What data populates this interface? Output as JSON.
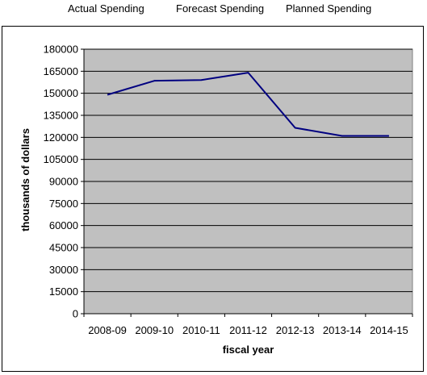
{
  "header": {
    "labels": [
      "Actual Spending",
      "Forecast Spending",
      "Planned Spending"
    ]
  },
  "chart_data": {
    "type": "line",
    "title": "",
    "xlabel": "fiscal year",
    "ylabel": "thousands of dollars",
    "categories": [
      "2008-09",
      "2009-10",
      "2010-11",
      "2011-12",
      "2012-13",
      "2013-14",
      "2014-15"
    ],
    "series": [
      {
        "values": [
          149000,
          158500,
          159000,
          164000,
          126500,
          121000,
          121000
        ]
      }
    ],
    "ylim": [
      0,
      180000
    ],
    "yticks": [
      0,
      15000,
      30000,
      45000,
      60000,
      75000,
      90000,
      105000,
      120000,
      135000,
      150000,
      165000,
      180000
    ],
    "grid": true,
    "legend": "none",
    "colors": {
      "line": "#000080",
      "plot_bg": "#c0c0c0",
      "grid": "#000000"
    }
  }
}
